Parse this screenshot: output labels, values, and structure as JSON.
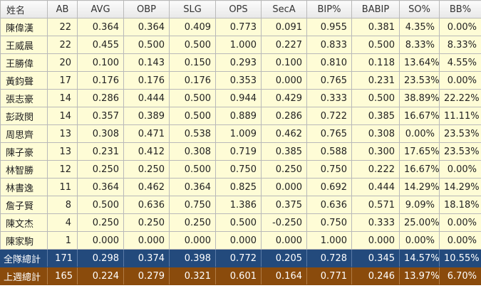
{
  "headers": [
    "姓名",
    "AB",
    "AVG",
    "OBP",
    "SLG",
    "OPS",
    "SecA",
    "BIP%",
    "BABIP",
    "SO%",
    "BB%"
  ],
  "rows": [
    [
      "陳偉漢",
      "22",
      "0.364",
      "0.364",
      "0.409",
      "0.773",
      "0.091",
      "0.955",
      "0.381",
      "4.35%",
      "0.00%"
    ],
    [
      "王威晨",
      "22",
      "0.455",
      "0.500",
      "0.500",
      "1.000",
      "0.227",
      "0.833",
      "0.500",
      "8.33%",
      "8.33%"
    ],
    [
      "王勝偉",
      "20",
      "0.100",
      "0.143",
      "0.150",
      "0.293",
      "0.100",
      "0.810",
      "0.118",
      "13.64%",
      "4.55%"
    ],
    [
      "黃鈞聲",
      "17",
      "0.176",
      "0.176",
      "0.176",
      "0.353",
      "0.000",
      "0.765",
      "0.231",
      "23.53%",
      "0.00%"
    ],
    [
      "張志豪",
      "14",
      "0.286",
      "0.444",
      "0.500",
      "0.944",
      "0.429",
      "0.333",
      "0.500",
      "38.89%",
      "22.22%"
    ],
    [
      "彭政閔",
      "14",
      "0.357",
      "0.389",
      "0.500",
      "0.889",
      "0.286",
      "0.722",
      "0.385",
      "16.67%",
      "11.11%"
    ],
    [
      "周思齊",
      "13",
      "0.308",
      "0.471",
      "0.538",
      "1.009",
      "0.462",
      "0.765",
      "0.308",
      "0.00%",
      "23.53%"
    ],
    [
      "陳子豪",
      "13",
      "0.231",
      "0.412",
      "0.308",
      "0.719",
      "0.385",
      "0.588",
      "0.300",
      "17.65%",
      "23.53%"
    ],
    [
      "林智勝",
      "12",
      "0.250",
      "0.250",
      "0.500",
      "0.750",
      "0.250",
      "0.750",
      "0.222",
      "16.67%",
      "0.00%"
    ],
    [
      "林書逸",
      "11",
      "0.364",
      "0.462",
      "0.364",
      "0.825",
      "0.000",
      "0.692",
      "0.444",
      "14.29%",
      "14.29%"
    ],
    [
      "詹子賢",
      "8",
      "0.500",
      "0.636",
      "0.750",
      "1.386",
      "0.375",
      "0.636",
      "0.571",
      "9.09%",
      "18.18%"
    ],
    [
      "陳文杰",
      "4",
      "0.250",
      "0.250",
      "0.250",
      "0.500",
      "-0.250",
      "0.750",
      "0.333",
      "25.00%",
      "0.00%"
    ],
    [
      "陳家駒",
      "1",
      "0.000",
      "0.000",
      "0.000",
      "0.000",
      "0.000",
      "1.000",
      "0.000",
      "0.00%",
      "0.00%"
    ]
  ],
  "team_total": [
    "全隊總計",
    "171",
    "0.298",
    "0.374",
    "0.398",
    "0.772",
    "0.205",
    "0.728",
    "0.345",
    "14.57%",
    "10.55%"
  ],
  "last_week_total": [
    "上週總計",
    "165",
    "0.224",
    "0.279",
    "0.321",
    "0.601",
    "0.164",
    "0.771",
    "0.246",
    "13.97%",
    "6.70%"
  ],
  "colors": {
    "row_bg": "#fefcd6",
    "team_total_bg": "#234a7c",
    "last_week_bg": "#8a4b0c",
    "header_bg": "#eeeeee"
  }
}
